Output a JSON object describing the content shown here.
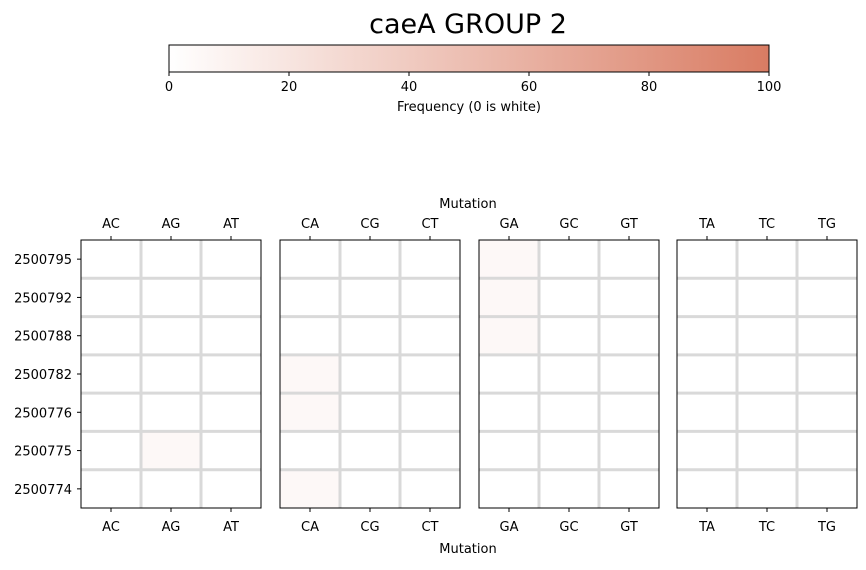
{
  "chart_data": {
    "type": "heatmap",
    "title": "caeA GROUP 2",
    "colorbar": {
      "label": "Frequency (0 is white)",
      "min": 0,
      "max": 100,
      "ticks": [
        0,
        20,
        40,
        60,
        80,
        100
      ],
      "color_low": "#ffffff",
      "color_high": "#d97c63",
      "placement": "top"
    },
    "xlabel": "Mutation",
    "ylabel": "",
    "rows": [
      "2500795",
      "2500792",
      "2500788",
      "2500782",
      "2500776",
      "2500775",
      "2500774"
    ],
    "grid_color": "#d9d9d9",
    "panels": [
      {
        "name": "A",
        "columns": [
          "AC",
          "AG",
          "AT"
        ],
        "values": [
          [
            0,
            0,
            0
          ],
          [
            0,
            0,
            0
          ],
          [
            0,
            0,
            0
          ],
          [
            0,
            0,
            0
          ],
          [
            0,
            0,
            0
          ],
          [
            0,
            5,
            0
          ],
          [
            0,
            0,
            0
          ]
        ]
      },
      {
        "name": "C",
        "columns": [
          "CA",
          "CG",
          "CT"
        ],
        "values": [
          [
            0,
            0,
            0
          ],
          [
            0,
            0,
            0
          ],
          [
            0,
            0,
            0
          ],
          [
            5,
            0,
            0
          ],
          [
            5,
            0,
            0
          ],
          [
            0,
            0,
            0
          ],
          [
            5,
            0,
            0
          ]
        ]
      },
      {
        "name": "G",
        "columns": [
          "GA",
          "GC",
          "GT"
        ],
        "values": [
          [
            5,
            0,
            0
          ],
          [
            5,
            0,
            0
          ],
          [
            5,
            0,
            0
          ],
          [
            0,
            0,
            0
          ],
          [
            0,
            0,
            0
          ],
          [
            0,
            0,
            0
          ],
          [
            0,
            0,
            0
          ]
        ]
      },
      {
        "name": "T",
        "columns": [
          "TA",
          "TC",
          "TG"
        ],
        "values": [
          [
            0,
            0,
            0
          ],
          [
            0,
            0,
            0
          ],
          [
            0,
            0,
            0
          ],
          [
            0,
            0,
            0
          ],
          [
            0,
            0,
            0
          ],
          [
            0,
            0,
            0
          ],
          [
            0,
            0,
            0
          ]
        ]
      }
    ]
  }
}
